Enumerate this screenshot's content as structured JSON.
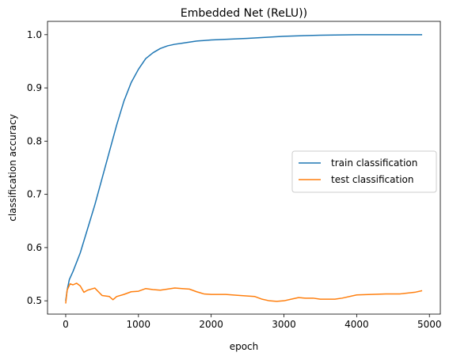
{
  "chart_data": {
    "type": "line",
    "title": "Embedded Net (ReLU))",
    "xlabel": "epoch",
    "ylabel": "classification accuracy",
    "xlim": [
      -250,
      5150
    ],
    "ylim": [
      0.475,
      1.025
    ],
    "xticks": [
      0,
      1000,
      2000,
      3000,
      4000,
      5000
    ],
    "yticks": [
      0.5,
      0.6,
      0.7,
      0.8,
      0.9,
      1.0
    ],
    "xtick_labels": [
      "0",
      "1000",
      "2000",
      "3000",
      "4000",
      "5000"
    ],
    "ytick_labels": [
      "0.5",
      "0.6",
      "0.7",
      "0.8",
      "0.9",
      "1.0"
    ],
    "grid": false,
    "legend_position": "center-right",
    "series": [
      {
        "name": "train classification",
        "color": "#1f77b4",
        "x": [
          0,
          20,
          50,
          100,
          200,
          300,
          400,
          500,
          600,
          700,
          800,
          900,
          1000,
          1100,
          1200,
          1300,
          1400,
          1500,
          1600,
          1800,
          2000,
          2500,
          3000,
          3500,
          4000,
          4500,
          4900
        ],
        "y": [
          0.5,
          0.52,
          0.54,
          0.555,
          0.59,
          0.635,
          0.68,
          0.73,
          0.78,
          0.83,
          0.875,
          0.91,
          0.935,
          0.955,
          0.966,
          0.974,
          0.979,
          0.982,
          0.984,
          0.988,
          0.99,
          0.993,
          0.997,
          0.999,
          1.0,
          1.0,
          1.0
        ]
      },
      {
        "name": "test classification",
        "color": "#ff7f0e",
        "x": [
          0,
          20,
          60,
          100,
          150,
          200,
          250,
          300,
          400,
          500,
          600,
          650,
          700,
          800,
          900,
          1000,
          1100,
          1200,
          1300,
          1400,
          1500,
          1600,
          1700,
          1800,
          1900,
          2000,
          2200,
          2400,
          2600,
          2700,
          2800,
          2900,
          3000,
          3100,
          3200,
          3300,
          3400,
          3500,
          3600,
          3700,
          3800,
          4000,
          4200,
          4400,
          4600,
          4800,
          4900
        ],
        "y": [
          0.495,
          0.52,
          0.532,
          0.53,
          0.533,
          0.528,
          0.516,
          0.52,
          0.524,
          0.51,
          0.508,
          0.502,
          0.508,
          0.512,
          0.517,
          0.518,
          0.523,
          0.521,
          0.52,
          0.522,
          0.524,
          0.523,
          0.522,
          0.517,
          0.513,
          0.512,
          0.512,
          0.51,
          0.508,
          0.503,
          0.5,
          0.499,
          0.5,
          0.503,
          0.506,
          0.505,
          0.505,
          0.503,
          0.503,
          0.503,
          0.505,
          0.511,
          0.512,
          0.513,
          0.513,
          0.516,
          0.519
        ]
      }
    ]
  }
}
